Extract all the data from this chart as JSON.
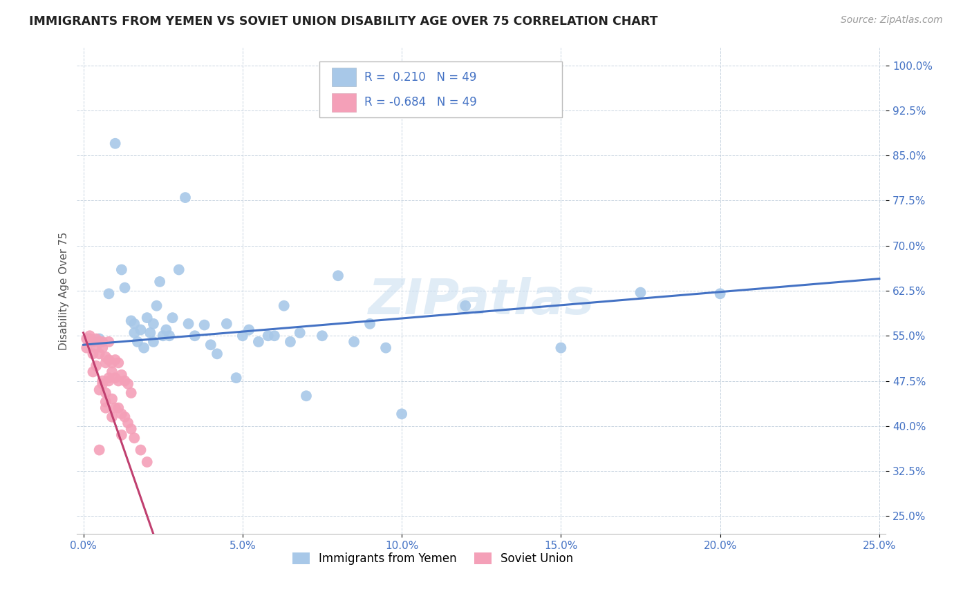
{
  "title": "IMMIGRANTS FROM YEMEN VS SOVIET UNION DISABILITY AGE OVER 75 CORRELATION CHART",
  "source": "Source: ZipAtlas.com",
  "xlabel_vals": [
    0.0,
    0.05,
    0.1,
    0.15,
    0.2,
    0.25
  ],
  "ylabel_vals": [
    0.25,
    0.325,
    0.4,
    0.475,
    0.55,
    0.625,
    0.7,
    0.775,
    0.85,
    0.925,
    1.0
  ],
  "xlim": [
    -0.002,
    0.252
  ],
  "ylim": [
    0.22,
    1.03
  ],
  "R_yemen": 0.21,
  "N_yemen": 49,
  "R_soviet": -0.684,
  "N_soviet": 49,
  "legend_labels": [
    "Immigrants from Yemen",
    "Soviet Union"
  ],
  "color_yemen": "#a8c8e8",
  "color_soviet": "#f4a0b8",
  "line_color_yemen": "#4472c4",
  "line_color_soviet": "#c04070",
  "watermark": "ZIPatlas",
  "ylabel": "Disability Age Over 75",
  "yemen_x": [
    0.005,
    0.008,
    0.01,
    0.012,
    0.013,
    0.015,
    0.016,
    0.016,
    0.017,
    0.018,
    0.019,
    0.02,
    0.021,
    0.022,
    0.022,
    0.023,
    0.024,
    0.025,
    0.026,
    0.027,
    0.028,
    0.03,
    0.032,
    0.033,
    0.035,
    0.038,
    0.04,
    0.042,
    0.045,
    0.048,
    0.05,
    0.052,
    0.055,
    0.058,
    0.06,
    0.063,
    0.065,
    0.068,
    0.07,
    0.075,
    0.08,
    0.085,
    0.09,
    0.095,
    0.1,
    0.12,
    0.15,
    0.175,
    0.2
  ],
  "yemen_y": [
    0.545,
    0.62,
    0.87,
    0.66,
    0.63,
    0.575,
    0.555,
    0.57,
    0.54,
    0.56,
    0.53,
    0.58,
    0.555,
    0.54,
    0.57,
    0.6,
    0.64,
    0.55,
    0.56,
    0.55,
    0.58,
    0.66,
    0.78,
    0.57,
    0.55,
    0.568,
    0.535,
    0.52,
    0.57,
    0.48,
    0.55,
    0.56,
    0.54,
    0.55,
    0.55,
    0.6,
    0.54,
    0.555,
    0.45,
    0.55,
    0.65,
    0.54,
    0.57,
    0.53,
    0.42,
    0.6,
    0.53,
    0.622,
    0.62
  ],
  "soviet_x": [
    0.001,
    0.001,
    0.002,
    0.002,
    0.003,
    0.003,
    0.004,
    0.004,
    0.005,
    0.005,
    0.006,
    0.006,
    0.007,
    0.007,
    0.008,
    0.008,
    0.009,
    0.009,
    0.01,
    0.01,
    0.011,
    0.011,
    0.012,
    0.013,
    0.014,
    0.015,
    0.004,
    0.006,
    0.007,
    0.008,
    0.003,
    0.005,
    0.006,
    0.007,
    0.008,
    0.009,
    0.01,
    0.011,
    0.012,
    0.013,
    0.014,
    0.015,
    0.016,
    0.018,
    0.02,
    0.005,
    0.007,
    0.009,
    0.012
  ],
  "soviet_y": [
    0.545,
    0.53,
    0.55,
    0.545,
    0.54,
    0.52,
    0.545,
    0.53,
    0.54,
    0.52,
    0.54,
    0.53,
    0.505,
    0.515,
    0.51,
    0.54,
    0.505,
    0.49,
    0.51,
    0.48,
    0.505,
    0.475,
    0.485,
    0.475,
    0.47,
    0.455,
    0.5,
    0.47,
    0.455,
    0.475,
    0.49,
    0.46,
    0.475,
    0.44,
    0.48,
    0.445,
    0.43,
    0.43,
    0.42,
    0.415,
    0.405,
    0.395,
    0.38,
    0.36,
    0.34,
    0.36,
    0.43,
    0.415,
    0.385
  ]
}
